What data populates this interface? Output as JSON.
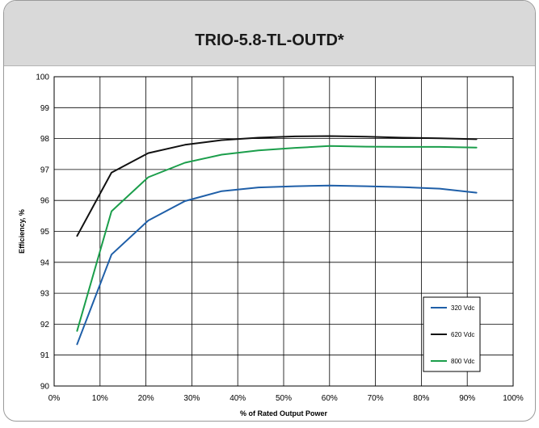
{
  "card": {
    "title": "TRIO-5.8-TL-OUTD*"
  },
  "chart_data": {
    "type": "line",
    "title": "TRIO-5.8-TL-OUTD*",
    "xlabel": "% of Rated Output Power",
    "ylabel": "Efficiency, %",
    "xlim": [
      0,
      100
    ],
    "ylim": [
      90,
      100
    ],
    "x_ticks": [
      0,
      10,
      20,
      30,
      40,
      50,
      60,
      70,
      80,
      90,
      100
    ],
    "x_tick_labels": [
      "0%",
      "10%",
      "20%",
      "30%",
      "40%",
      "50%",
      "60%",
      "70%",
      "80%",
      "90%",
      "100%"
    ],
    "y_ticks": [
      90,
      91,
      92,
      93,
      94,
      95,
      96,
      97,
      98,
      99,
      100
    ],
    "y_tick_labels": [
      "90",
      "91",
      "92",
      "93",
      "94",
      "95",
      "96",
      "97",
      "98",
      "99",
      "100"
    ],
    "grid": true,
    "legend_position": "bottom-right",
    "series": [
      {
        "name": "320 Vdc",
        "color": "#1f5fa8",
        "x": [
          5,
          12.5,
          20.5,
          28.5,
          36.5,
          44.5,
          52.5,
          60,
          68,
          76,
          84,
          92
        ],
        "y": [
          91.35,
          94.25,
          95.35,
          95.98,
          96.3,
          96.42,
          96.46,
          96.48,
          96.46,
          96.43,
          96.38,
          96.25
        ]
      },
      {
        "name": "620 Vdc",
        "color": "#111111",
        "x": [
          5,
          12.5,
          20.5,
          28.5,
          36.5,
          44.5,
          52.5,
          60,
          68,
          76,
          84,
          92
        ],
        "y": [
          94.85,
          96.9,
          97.53,
          97.8,
          97.95,
          98.03,
          98.07,
          98.08,
          98.06,
          98.03,
          98.01,
          97.98
        ]
      },
      {
        "name": "800 Vdc",
        "color": "#1b9e4b",
        "x": [
          5,
          12.5,
          20.5,
          28.5,
          36.5,
          44.5,
          52.5,
          60,
          68,
          76,
          84,
          92
        ],
        "y": [
          91.78,
          95.65,
          96.75,
          97.22,
          97.48,
          97.62,
          97.7,
          97.76,
          97.74,
          97.73,
          97.73,
          97.71
        ]
      }
    ]
  }
}
